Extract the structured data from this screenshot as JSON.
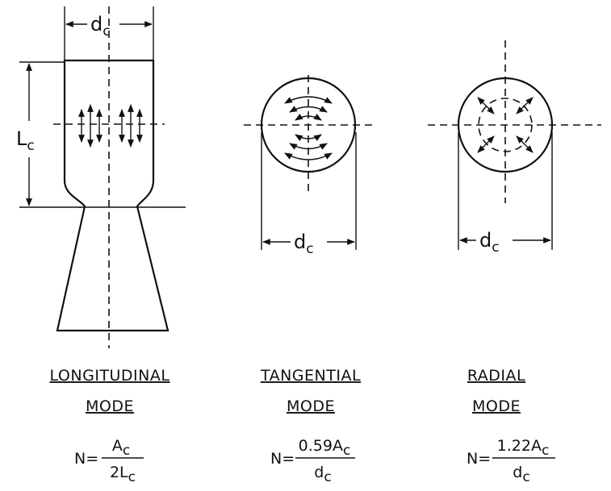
{
  "dimension_labels": {
    "chamber_diameter": {
      "main": "d",
      "sub": "c"
    },
    "chamber_length": {
      "main": "L",
      "sub": "c"
    }
  },
  "modes": [
    {
      "title_line1": "LONGITUDINAL",
      "title_line2": "MODE",
      "formula": {
        "lhs": "N=",
        "num_main": "A",
        "num_sub": "c",
        "den_main": "2L",
        "den_sub": "c"
      }
    },
    {
      "title_line1": "TANGENTIAL",
      "title_line2": "MODE",
      "formula": {
        "lhs": "N=",
        "num_main": "0.59A",
        "num_sub": "c",
        "den_main": "d",
        "den_sub": "c"
      }
    },
    {
      "title_line1": "RADIAL",
      "title_line2": "MODE",
      "formula": {
        "lhs": "N=",
        "num_main": "1.22A",
        "num_sub": "c",
        "den_main": "d",
        "den_sub": "c"
      }
    }
  ]
}
